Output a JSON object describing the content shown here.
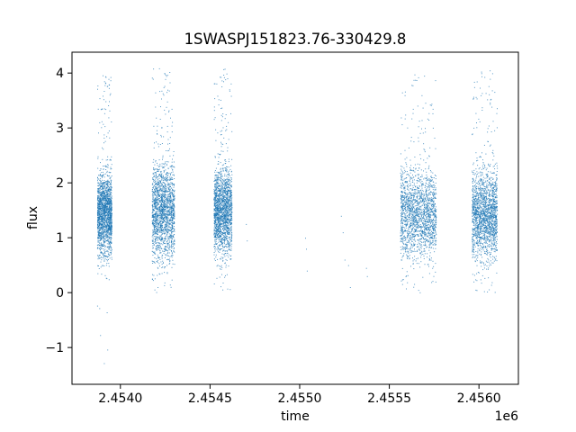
{
  "chart_data": {
    "type": "scatter",
    "title": "1SWASPJ151823.76-330429.8",
    "xlabel": "time",
    "ylabel": "flux",
    "x_offset_label": "1e6",
    "xlim": [
      2453730,
      2456220
    ],
    "ylim": [
      -1.67,
      4.38
    ],
    "x_ticks": [
      2454000,
      2454500,
      2455000,
      2455500,
      2456000
    ],
    "x_tick_labels": [
      "2.4540",
      "2.4545",
      "2.4550",
      "2.4555",
      "2.4560"
    ],
    "y_ticks": [
      -1,
      0,
      1,
      2,
      3,
      4
    ],
    "y_tick_labels": [
      "−1",
      "0",
      "1",
      "2",
      "3",
      "4"
    ],
    "grid": false,
    "marker_color": "#1f77b4",
    "observing_seasons": [
      {
        "x_range": [
          2453870,
          2453950
        ],
        "flux_typical": [
          0.5,
          2.4
        ],
        "flux_min": -1.4,
        "flux_max": 4.0
      },
      {
        "x_range": [
          2454175,
          2454300
        ],
        "flux_typical": [
          0.4,
          2.6
        ],
        "flux_min": -0.05,
        "flux_max": 4.1
      },
      {
        "x_range": [
          2454520,
          2454620
        ],
        "flux_typical": [
          0.5,
          2.5
        ],
        "flux_min": 0.0,
        "flux_max": 4.15
      },
      {
        "x_range": [
          2455560,
          2455760
        ],
        "flux_typical": [
          0.4,
          2.5
        ],
        "flux_min": 0.0,
        "flux_max": 4.0
      },
      {
        "x_range": [
          2455960,
          2456100
        ],
        "flux_typical": [
          0.4,
          2.5
        ],
        "flux_min": 0.0,
        "flux_max": 4.1
      }
    ],
    "sparse_points": [
      {
        "x": 2454700,
        "y": 1.25
      },
      {
        "x": 2454705,
        "y": 0.95
      },
      {
        "x": 2455030,
        "y": 1.0
      },
      {
        "x": 2455035,
        "y": 0.8
      },
      {
        "x": 2455040,
        "y": 0.4
      },
      {
        "x": 2455230,
        "y": 1.4
      },
      {
        "x": 2455240,
        "y": 1.1
      },
      {
        "x": 2455250,
        "y": 0.6
      },
      {
        "x": 2455270,
        "y": 0.5
      },
      {
        "x": 2455280,
        "y": 0.1
      },
      {
        "x": 2455370,
        "y": 0.45
      },
      {
        "x": 2455375,
        "y": 0.3
      }
    ]
  }
}
